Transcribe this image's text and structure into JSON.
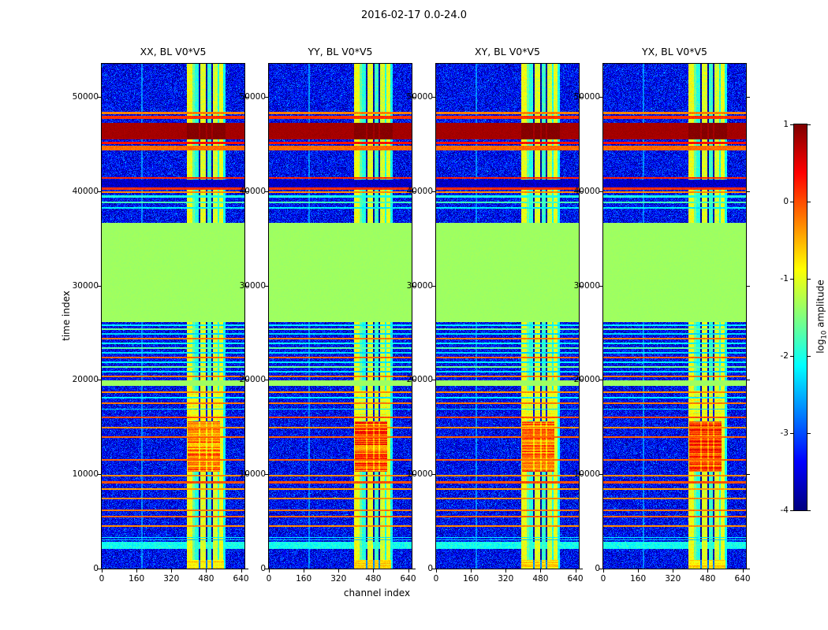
{
  "figure": {
    "title": "2016-02-17 0.0-24.0",
    "xlabel": "channel index",
    "ylabel": "time index"
  },
  "colorbar": {
    "label_prefix": "log",
    "label_sub": "10",
    "label_suffix": " amplitude"
  },
  "colors": {
    "figure_background": "#ffffff",
    "text": "#000000",
    "axes_frame": "#000000"
  },
  "chart_data": {
    "type": "heatmap",
    "title": "2016-02-17 0.0-24.0",
    "xlabel": "channel index",
    "ylabel": "time index",
    "x_ticks": [
      0,
      160,
      320,
      480,
      640
    ],
    "y_ticks": [
      0,
      10000,
      20000,
      30000,
      40000,
      50000
    ],
    "xlim": [
      0,
      656
    ],
    "ylim": [
      0,
      53500
    ],
    "grid": false,
    "colorbar": {
      "label": "log10 amplitude",
      "ticks": [
        1,
        0,
        -1,
        -2,
        -3,
        -4
      ],
      "vmin": -4,
      "vmax": 1,
      "colormap": "jet"
    },
    "panels": [
      {
        "title": "XX, BL V0*V5",
        "blob_amp": -0.3
      },
      {
        "title": "YY, BL V0*V5",
        "blob_amp": 0.0
      },
      {
        "title": "XY, BL V0*V5",
        "blob_amp": -0.2
      },
      {
        "title": "YX, BL V0*V5",
        "blob_amp": 0.1
      }
    ],
    "background": {
      "amp": -3.4,
      "noise": 1.15,
      "fleck_p": 0.006,
      "fleck_amp": -2.4
    },
    "stripes": [
      {
        "c0": 181,
        "c1": 187,
        "amp": -2.7
      },
      {
        "c0": 390,
        "c1": 418,
        "amp": -0.95
      },
      {
        "c0": 418,
        "c1": 427,
        "amp": -1.6
      },
      {
        "c0": 427,
        "c1": 446,
        "amp": -1.95
      },
      {
        "c0": 446,
        "c1": 453,
        "amp": -3.8
      },
      {
        "c0": 453,
        "c1": 478,
        "amp": -1.05
      },
      {
        "c0": 478,
        "c1": 486,
        "amp": -3.8
      },
      {
        "c0": 486,
        "c1": 504,
        "amp": -1.85
      },
      {
        "c0": 504,
        "c1": 511,
        "amp": -3.8
      },
      {
        "c0": 511,
        "c1": 533,
        "amp": -1.1
      },
      {
        "c0": 533,
        "c1": 540,
        "amp": -2.0
      },
      {
        "c0": 540,
        "c1": 558,
        "amp": -1.0
      },
      {
        "c0": 558,
        "c1": 569,
        "amp": -2.1
      }
    ],
    "blobs": [
      {
        "t0": 10300,
        "t1": 15600,
        "c0": 395,
        "c1": 545,
        "row_noise": 0.5,
        "gap_drop": 0.5
      },
      {
        "t0": 15700,
        "t1": 18900,
        "c0": 395,
        "c1": 545,
        "amp": -1.0,
        "row_noise": 0.3,
        "gap_drop": 2.5
      },
      {
        "t0": 0,
        "t1": 900,
        "c0": 390,
        "c1": 560,
        "amp": -0.75,
        "row_noise": 0.3,
        "gap_drop": 2.0
      }
    ],
    "bands": [
      {
        "t0": 48150,
        "t1": 48420,
        "mode": "solid",
        "amp": -0.25,
        "noise": 0.25
      },
      {
        "t0": 47650,
        "t1": 47980,
        "mode": "solid",
        "amp": 0.15,
        "noise": 0.2
      },
      {
        "t0": 45500,
        "t1": 47200,
        "mode": "solid",
        "amp": 0.82,
        "noise": 0.12,
        "stripe_bonus": 0.15
      },
      {
        "t0": 45000,
        "t1": 45250,
        "mode": "solid",
        "amp": 0.3,
        "noise": 0.2
      },
      {
        "t0": 44350,
        "t1": 44780,
        "mode": "solid",
        "amp": -0.15,
        "noise": 0.25
      },
      {
        "t0": 41300,
        "t1": 41520,
        "mode": "solid",
        "amp": 0.2,
        "noise": 0.2
      },
      {
        "t0": 40380,
        "t1": 41230,
        "mode": "solid",
        "amp": -3.65,
        "noise": 0.45
      },
      {
        "t0": 40150,
        "t1": 40360,
        "mode": "solid",
        "amp": 0.15,
        "noise": 0.2
      },
      {
        "t0": 39850,
        "t1": 40000,
        "mode": "solid",
        "amp": -0.3,
        "noise": 0.2
      },
      {
        "t0": 39350,
        "t1": 39520,
        "mode": "solid",
        "amp": -2.0,
        "noise": 0.3
      },
      {
        "t0": 38750,
        "t1": 38900,
        "mode": "solid",
        "amp": -1.8,
        "noise": 0.3
      },
      {
        "t0": 38150,
        "t1": 38300,
        "mode": "solid",
        "amp": -2.2,
        "noise": 0.3
      },
      {
        "t0": 26100,
        "t1": 36600,
        "mode": "solid",
        "amp": -1.35,
        "noise": 0.06
      },
      {
        "t0": 25720,
        "t1": 25880,
        "mode": "solid",
        "amp": -2.2,
        "noise": 0.25
      },
      {
        "t0": 25320,
        "t1": 25480,
        "mode": "solid",
        "amp": -1.6,
        "noise": 0.2
      },
      {
        "t0": 24820,
        "t1": 24980,
        "mode": "solid",
        "amp": -2.3,
        "noise": 0.25
      },
      {
        "t0": 24320,
        "t1": 24480,
        "mode": "solid",
        "amp": -0.2,
        "noise": 0.2
      },
      {
        "t0": 23820,
        "t1": 23980,
        "mode": "solid",
        "amp": -2.1,
        "noise": 0.25
      },
      {
        "t0": 23320,
        "t1": 23480,
        "mode": "solid",
        "amp": -1.7,
        "noise": 0.2
      },
      {
        "t0": 22820,
        "t1": 22980,
        "mode": "solid",
        "amp": -2.3,
        "noise": 0.25
      },
      {
        "t0": 22320,
        "t1": 22480,
        "mode": "solid",
        "amp": -0.1,
        "noise": 0.2
      },
      {
        "t0": 21820,
        "t1": 21980,
        "mode": "solid",
        "amp": -2.2,
        "noise": 0.25
      },
      {
        "t0": 21320,
        "t1": 21480,
        "mode": "solid",
        "amp": -1.6,
        "noise": 0.2
      },
      {
        "t0": 20820,
        "t1": 20980,
        "mode": "solid",
        "amp": -2.3,
        "noise": 0.25
      },
      {
        "t0": 20320,
        "t1": 20480,
        "mode": "solid",
        "amp": -0.2,
        "noise": 0.2
      },
      {
        "t0": 19350,
        "t1": 19950,
        "mode": "solid",
        "amp": -1.35,
        "noise": 0.06
      },
      {
        "t0": 18610,
        "t1": 18790,
        "mode": "solid",
        "amp": -0.3,
        "noise": 0.2
      },
      {
        "t0": 18030,
        "t1": 18170,
        "mode": "solid",
        "amp": -2.2,
        "noise": 0.25
      },
      {
        "t0": 17410,
        "t1": 17590,
        "mode": "solid",
        "amp": -0.2,
        "noise": 0.2
      },
      {
        "t0": 16830,
        "t1": 16970,
        "mode": "solid",
        "amp": -2.3,
        "noise": 0.25
      },
      {
        "t0": 15950,
        "t1": 16150,
        "mode": "solid",
        "amp": 0.0,
        "noise": 0.2
      },
      {
        "t0": 14860,
        "t1": 15040,
        "mode": "solid",
        "amp": -0.3,
        "noise": 0.2
      },
      {
        "t0": 13815,
        "t1": 13985,
        "mode": "solid",
        "amp": -0.1,
        "noise": 0.2
      },
      {
        "t0": 11415,
        "t1": 11585,
        "mode": "solid",
        "amp": -0.1,
        "noise": 0.2
      },
      {
        "t0": 9765,
        "t1": 9935,
        "mode": "solid",
        "amp": -0.3,
        "noise": 0.2
      },
      {
        "t0": 9055,
        "t1": 9245,
        "mode": "solid",
        "amp": 0.0,
        "noise": 0.2
      },
      {
        "t0": 8350,
        "t1": 8510,
        "mode": "solid",
        "amp": -0.4,
        "noise": 0.2
      },
      {
        "t0": 7350,
        "t1": 7510,
        "mode": "solid",
        "amp": -0.3,
        "noise": 0.2
      },
      {
        "t0": 6095,
        "t1": 6265,
        "mode": "solid",
        "amp": -0.2,
        "noise": 0.2
      },
      {
        "t0": 5430,
        "t1": 5590,
        "mode": "solid",
        "amp": -0.1,
        "noise": 0.2
      },
      {
        "t0": 4430,
        "t1": 4590,
        "mode": "solid",
        "amp": -0.3,
        "noise": 0.2
      },
      {
        "t0": 3230,
        "t1": 3370,
        "mode": "solid",
        "amp": -2.2,
        "noise": 0.25
      },
      {
        "t0": 2980,
        "t1": 3110,
        "mode": "solid",
        "amp": -2.4,
        "noise": 0.25
      },
      {
        "t0": 2100,
        "t1": 2850,
        "mode": "floor",
        "amp": -2.05,
        "noise": 0.5
      }
    ]
  }
}
